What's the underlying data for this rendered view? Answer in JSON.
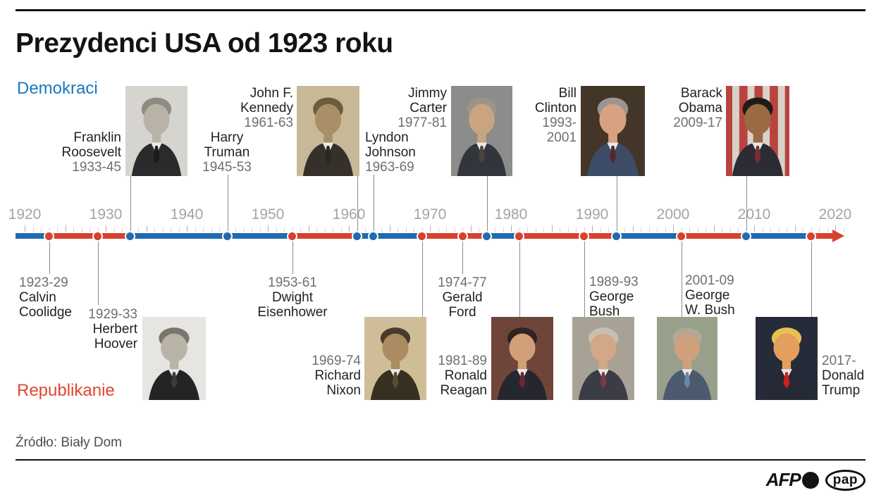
{
  "title": "Prezydenci USA od 1923 roku",
  "legend": {
    "democrats_label": "Demokraci",
    "republicans_label": "Republikanie"
  },
  "source": "Źródło: Biały Dom",
  "footer_logos": {
    "afp": "AFP",
    "pap": "pap"
  },
  "colors": {
    "democrat": "#1e6bad",
    "republican": "#d8402f",
    "democrat_label_text": "#1878be",
    "republican_label_text": "#e2462f",
    "axis_year_text": "#a4a4a4",
    "term_year_text": "#6f6f6f",
    "name_text": "#222222",
    "connector": "#8c8c8c"
  },
  "chart_data": {
    "type": "timeline",
    "title": "Prezydenci USA od 1923 roku",
    "axis": {
      "start": 1920,
      "end": 2020,
      "tick_interval_years": 1,
      "major_tick_interval_years": 5,
      "decade_labels": [
        1920,
        1930,
        1940,
        1950,
        1960,
        1970,
        1980,
        1990,
        2000,
        2010,
        2020
      ],
      "arrow_at_end": true
    },
    "parties": {
      "D": "Demokraci",
      "R": "Republikanie"
    },
    "presidents": [
      {
        "id": "coolidge",
        "name_lines": [
          "Calvin",
          "Coolidge"
        ],
        "term_lines": [
          "1923-29"
        ],
        "start_year": 1923,
        "party": "R",
        "has_photo": false
      },
      {
        "id": "hoover",
        "name_lines": [
          "Herbert",
          "Hoover"
        ],
        "term_lines": [
          "1929-33"
        ],
        "start_year": 1929,
        "party": "R",
        "has_photo": true
      },
      {
        "id": "fdr",
        "name_lines": [
          "Franklin",
          "Roosevelt"
        ],
        "term_lines": [
          "1933-45"
        ],
        "start_year": 1933,
        "party": "D",
        "has_photo": true
      },
      {
        "id": "truman",
        "name_lines": [
          "Harry",
          "Truman"
        ],
        "term_lines": [
          "1945-53"
        ],
        "start_year": 1945,
        "party": "D",
        "has_photo": false
      },
      {
        "id": "eisenhower",
        "name_lines": [
          "Dwight",
          "Eisenhower"
        ],
        "term_lines": [
          "1953-61"
        ],
        "start_year": 1953,
        "party": "R",
        "has_photo": false
      },
      {
        "id": "kennedy",
        "name_lines": [
          "John F.",
          "Kennedy"
        ],
        "term_lines": [
          "1961-63"
        ],
        "start_year": 1961,
        "party": "D",
        "has_photo": true
      },
      {
        "id": "johnson",
        "name_lines": [
          "Lyndon",
          "Johnson"
        ],
        "term_lines": [
          "1963-69"
        ],
        "start_year": 1963,
        "party": "D",
        "has_photo": false
      },
      {
        "id": "nixon",
        "name_lines": [
          "Richard",
          "Nixon"
        ],
        "term_lines": [
          "1969-74"
        ],
        "start_year": 1969,
        "party": "R",
        "has_photo": true
      },
      {
        "id": "ford",
        "name_lines": [
          "Gerald",
          "Ford"
        ],
        "term_lines": [
          "1974-77"
        ],
        "start_year": 1974,
        "party": "R",
        "has_photo": false
      },
      {
        "id": "carter",
        "name_lines": [
          "Jimmy",
          "Carter"
        ],
        "term_lines": [
          "1977-81"
        ],
        "start_year": 1977,
        "party": "D",
        "has_photo": true
      },
      {
        "id": "reagan",
        "name_lines": [
          "Ronald",
          "Reagan"
        ],
        "term_lines": [
          "1981-89"
        ],
        "start_year": 1981,
        "party": "R",
        "has_photo": true
      },
      {
        "id": "bush_sr",
        "name_lines": [
          "George",
          "Bush"
        ],
        "term_lines": [
          "1989-93"
        ],
        "start_year": 1989,
        "party": "R",
        "has_photo": true
      },
      {
        "id": "clinton",
        "name_lines": [
          "Bill",
          "Clinton"
        ],
        "term_lines": [
          "1993-",
          "2001"
        ],
        "start_year": 1993,
        "party": "D",
        "has_photo": true
      },
      {
        "id": "bush_jr",
        "name_lines": [
          "George",
          "W. Bush"
        ],
        "term_lines": [
          "2001-09"
        ],
        "start_year": 2001,
        "party": "R",
        "has_photo": true
      },
      {
        "id": "obama",
        "name_lines": [
          "Barack",
          "Obama"
        ],
        "term_lines": [
          "2009-17"
        ],
        "start_year": 2009,
        "party": "D",
        "has_photo": true
      },
      {
        "id": "trump",
        "name_lines": [
          "Donald",
          "Trump"
        ],
        "term_lines": [
          "2017-"
        ],
        "start_year": 2017,
        "party": "R",
        "has_photo": true
      }
    ]
  }
}
